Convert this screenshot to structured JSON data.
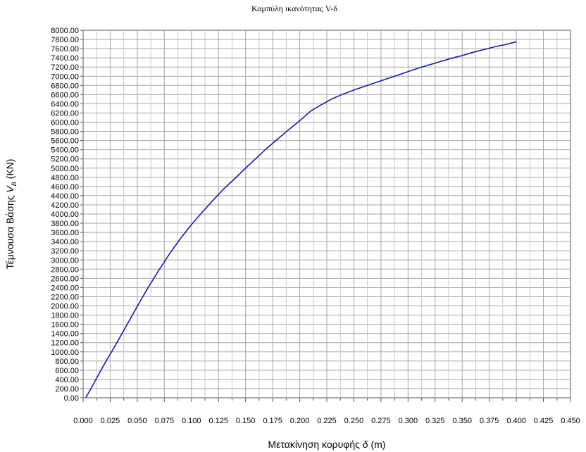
{
  "chart_data": {
    "type": "line",
    "title": "Καμπύλη ικανότητας V-δ",
    "xlabel": {
      "prefix": "Μετακίνηση κορυφής ",
      "symbol": "δ",
      "suffix": " (m)"
    },
    "ylabel": {
      "prefix": "Τέμνουσα Βάσης ",
      "symbol": "V",
      "subscript": "B",
      "suffix": " (KN)"
    },
    "xlim": [
      0,
      0.45
    ],
    "ylim": [
      0,
      8000
    ],
    "x_ticks": [
      "0.000",
      "0.025",
      "0.050",
      "0.075",
      "0.100",
      "0.125",
      "0.150",
      "0.175",
      "0.200",
      "0.225",
      "0.250",
      "0.275",
      "0.300",
      "0.325",
      "0.350",
      "0.375",
      "0.400",
      "0.425",
      "0.450"
    ],
    "y_ticks": [
      "0.00",
      "200.00",
      "400.00",
      "600.00",
      "800.00",
      "1000.00",
      "1200.00",
      "1400.00",
      "1600.00",
      "1800.00",
      "2000.00",
      "2200.00",
      "2400.00",
      "2600.00",
      "2800.00",
      "3000.00",
      "3200.00",
      "3400.00",
      "3600.00",
      "3800.00",
      "4000.00",
      "4200.00",
      "4400.00",
      "4600.00",
      "4800.00",
      "5000.00",
      "5200.00",
      "5400.00",
      "5600.00",
      "5800.00",
      "6000.00",
      "6200.00",
      "6400.00",
      "6600.00",
      "6800.00",
      "7000.00",
      "7200.00",
      "7400.00",
      "7600.00",
      "7800.00",
      "8000.00"
    ],
    "grid": true,
    "legend": "none",
    "series": [
      {
        "color": "#1a1aa6",
        "x": [
          0.0025,
          0.01,
          0.02,
          0.03,
          0.04,
          0.05,
          0.06,
          0.07,
          0.08,
          0.09,
          0.1,
          0.11,
          0.12,
          0.13,
          0.14,
          0.15,
          0.16,
          0.17,
          0.18,
          0.19,
          0.2,
          0.21,
          0.22,
          0.23,
          0.24,
          0.25,
          0.26,
          0.27,
          0.28,
          0.29,
          0.3,
          0.31,
          0.32,
          0.33,
          0.34,
          0.35,
          0.36,
          0.37,
          0.38,
          0.39,
          0.4
        ],
        "y": [
          0,
          320,
          750,
          1150,
          1570,
          1990,
          2400,
          2780,
          3140,
          3470,
          3770,
          4040,
          4300,
          4550,
          4770,
          5000,
          5220,
          5440,
          5640,
          5840,
          6030,
          6240,
          6380,
          6510,
          6610,
          6700,
          6780,
          6860,
          6940,
          7020,
          7100,
          7180,
          7250,
          7320,
          7390,
          7450,
          7520,
          7580,
          7640,
          7690,
          7750
        ]
      }
    ]
  }
}
